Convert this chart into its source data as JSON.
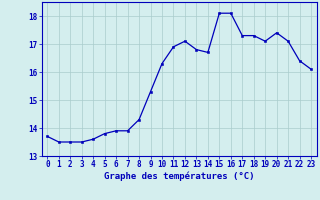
{
  "x": [
    0,
    1,
    2,
    3,
    4,
    5,
    6,
    7,
    8,
    9,
    10,
    11,
    12,
    13,
    14,
    15,
    16,
    17,
    18,
    19,
    20,
    21,
    22,
    23
  ],
  "y": [
    13.7,
    13.5,
    13.5,
    13.5,
    13.6,
    13.8,
    13.9,
    13.9,
    14.3,
    15.3,
    16.3,
    16.9,
    17.1,
    16.8,
    16.7,
    18.1,
    18.1,
    17.3,
    17.3,
    17.1,
    17.4,
    17.1,
    16.4,
    16.1
  ],
  "xlabel": "Graphe des températures (°C)",
  "ylim": [
    13,
    18.5
  ],
  "xlim": [
    -0.5,
    23.5
  ],
  "yticks": [
    13,
    14,
    15,
    16,
    17,
    18
  ],
  "xticks": [
    0,
    1,
    2,
    3,
    4,
    5,
    6,
    7,
    8,
    9,
    10,
    11,
    12,
    13,
    14,
    15,
    16,
    17,
    18,
    19,
    20,
    21,
    22,
    23
  ],
  "line_color": "#0000bb",
  "marker_color": "#0000bb",
  "bg_color": "#d4eeee",
  "grid_color": "#aacccc",
  "axis_color": "#0000bb",
  "tick_label_color": "#0000bb",
  "xlabel_color": "#0000bb",
  "tick_fontsize": 5.5,
  "xlabel_fontsize": 6.5
}
